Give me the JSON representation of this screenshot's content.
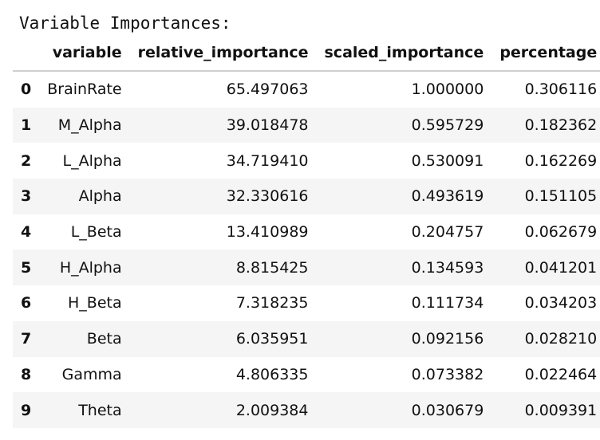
{
  "heading": "Variable Importances:",
  "table": {
    "columns": [
      "",
      "variable",
      "relative_importance",
      "scaled_importance",
      "percentage"
    ],
    "rows": [
      {
        "index": "0",
        "variable": "BrainRate",
        "relative_importance": "65.497063",
        "scaled_importance": "1.000000",
        "percentage": "0.306116"
      },
      {
        "index": "1",
        "variable": "M_Alpha",
        "relative_importance": "39.018478",
        "scaled_importance": "0.595729",
        "percentage": "0.182362"
      },
      {
        "index": "2",
        "variable": "L_Alpha",
        "relative_importance": "34.719410",
        "scaled_importance": "0.530091",
        "percentage": "0.162269"
      },
      {
        "index": "3",
        "variable": "Alpha",
        "relative_importance": "32.330616",
        "scaled_importance": "0.493619",
        "percentage": "0.151105"
      },
      {
        "index": "4",
        "variable": "L_Beta",
        "relative_importance": "13.410989",
        "scaled_importance": "0.204757",
        "percentage": "0.062679"
      },
      {
        "index": "5",
        "variable": "H_Alpha",
        "relative_importance": "8.815425",
        "scaled_importance": "0.134593",
        "percentage": "0.041201"
      },
      {
        "index": "6",
        "variable": "H_Beta",
        "relative_importance": "7.318235",
        "scaled_importance": "0.111734",
        "percentage": "0.034203"
      },
      {
        "index": "7",
        "variable": "Beta",
        "relative_importance": "6.035951",
        "scaled_importance": "0.092156",
        "percentage": "0.028210"
      },
      {
        "index": "8",
        "variable": "Gamma",
        "relative_importance": "4.806335",
        "scaled_importance": "0.073382",
        "percentage": "0.022464"
      },
      {
        "index": "9",
        "variable": "Theta",
        "relative_importance": "2.009384",
        "scaled_importance": "0.030679",
        "percentage": "0.009391"
      }
    ]
  }
}
